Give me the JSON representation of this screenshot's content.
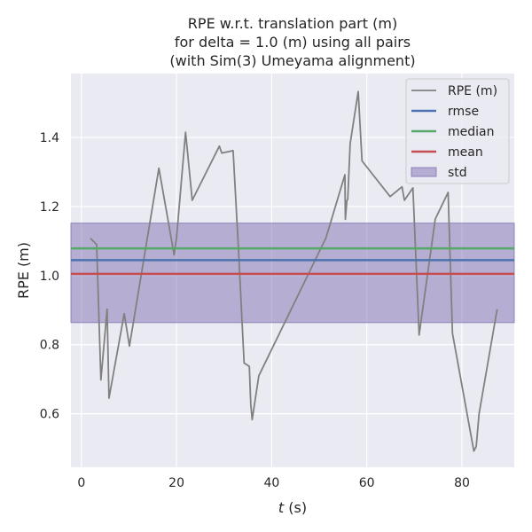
{
  "chart_data": {
    "type": "line",
    "title_lines": [
      "RPE w.r.t. translation part (m)",
      "for delta = 1.0 (m) using all pairs",
      "(with Sim(3) Umeyama alignment)"
    ],
    "xlabel_italic": "t",
    "xlabel_rest": " (s)",
    "ylabel": "RPE (m)",
    "xlim": [
      -2.2,
      91
    ],
    "ylim": [
      0.445,
      1.585
    ],
    "x_ticks": [
      0,
      20,
      40,
      60,
      80
    ],
    "y_ticks": [
      0.6,
      0.8,
      1.0,
      1.2,
      1.4
    ],
    "y_tick_labels": [
      "0.6",
      "0.8",
      "1.0",
      "1.2",
      "1.4"
    ],
    "grid": true,
    "legend_position": "top-right",
    "series": [
      {
        "name": "RPE (m)",
        "color": "#808080",
        "x": [
          1.9,
          3.2,
          4.1,
          5.4,
          5.8,
          9.0,
          10.1,
          16.3,
          19.5,
          20.0,
          21.9,
          23.3,
          29.0,
          29.5,
          31.9,
          33.0,
          34.2,
          35.3,
          35.6,
          35.9,
          37.3,
          51.4,
          55.4,
          55.5,
          55.8,
          56.0,
          56.5,
          58.2,
          59.0,
          64.9,
          67.4,
          67.9,
          69.7,
          71.0,
          74.4,
          77.1,
          78.0,
          82.5,
          83.0,
          83.6,
          87.4
        ],
        "y": [
          1.108,
          1.09,
          0.698,
          0.903,
          0.645,
          0.89,
          0.796,
          1.311,
          1.06,
          1.11,
          1.415,
          1.218,
          1.375,
          1.355,
          1.362,
          1.085,
          0.747,
          0.737,
          0.628,
          0.583,
          0.71,
          1.109,
          1.292,
          1.163,
          1.217,
          1.221,
          1.382,
          1.533,
          1.332,
          1.229,
          1.257,
          1.218,
          1.254,
          0.828,
          1.164,
          1.241,
          0.833,
          0.492,
          0.505,
          0.6,
          0.903
        ]
      }
    ],
    "stats": [
      {
        "name": "rmse",
        "value": 1.045,
        "color": "#4c72b0"
      },
      {
        "name": "median",
        "value": 1.079,
        "color": "#55a868"
      },
      {
        "name": "mean",
        "value": 1.005,
        "color": "#c44e52"
      }
    ],
    "std_band": {
      "name": "std",
      "lower": 0.864,
      "upper": 1.152,
      "color": "#8172b2"
    },
    "legend": [
      "RPE (m)",
      "rmse",
      "median",
      "mean",
      "std"
    ]
  }
}
